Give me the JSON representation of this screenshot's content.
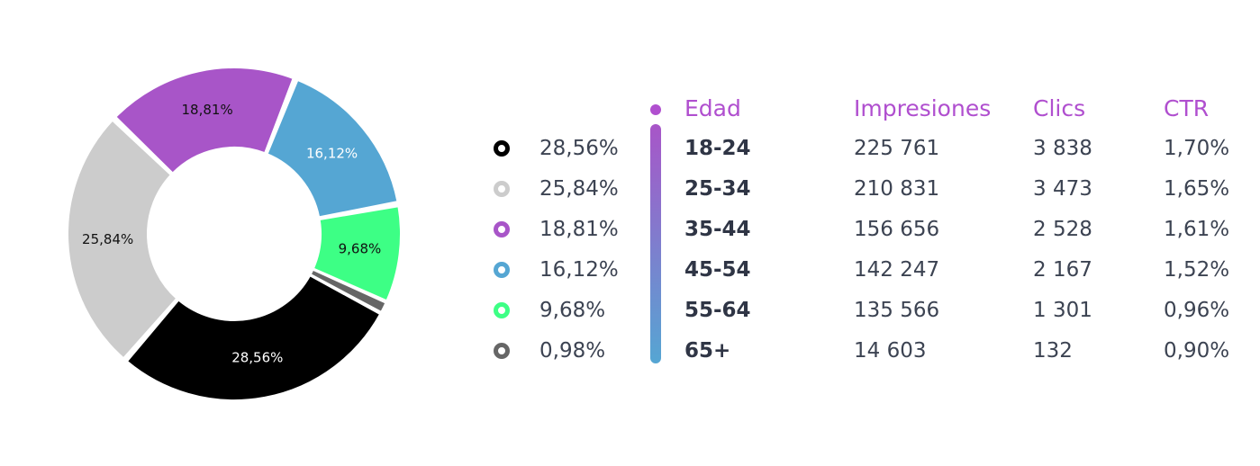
{
  "chart_data": [
    {
      "type": "pie",
      "variant": "donut",
      "slices": [
        {
          "label": "28,56%",
          "value": 28.56,
          "color": "#000000",
          "label_color": "#ffffff"
        },
        {
          "label": "25,84%",
          "value": 25.84,
          "color": "#cccccc",
          "label_color": "#111111"
        },
        {
          "label": "18,81%",
          "value": 18.81,
          "color": "#a855c8",
          "label_color": "#111111"
        },
        {
          "label": "16,12%",
          "value": 16.12,
          "color": "#55a6d3",
          "label_color": "#ffffff"
        },
        {
          "label": "9,68%",
          "value": 9.68,
          "color": "#3dff85",
          "label_color": "#111111"
        },
        {
          "label": "",
          "value": 0.98,
          "color": "#666666",
          "label_color": "#111111"
        }
      ]
    },
    {
      "type": "table",
      "columns": [
        "Edad",
        "Impresiones",
        "Clics",
        "CTR"
      ],
      "rows": [
        [
          "18-24",
          "225 761",
          "3 838",
          "1,70%"
        ],
        [
          "25-34",
          "210 831",
          "3 473",
          "1,65%"
        ],
        [
          "35-44",
          "156 656",
          "2 528",
          "1,61%"
        ],
        [
          "45-54",
          "142 247",
          "2 167",
          "1,52%"
        ],
        [
          "55-64",
          "135 566",
          "1 301",
          "0,96%"
        ],
        [
          "65+",
          "14 603",
          "132",
          "0,90%"
        ]
      ]
    }
  ],
  "legend": [
    {
      "value": "28,56%",
      "color": "#000000"
    },
    {
      "value": "25,84%",
      "color": "#cccccc"
    },
    {
      "value": "18,81%",
      "color": "#a855c8"
    },
    {
      "value": "16,12%",
      "color": "#55a6d3"
    },
    {
      "value": "9,68%",
      "color": "#3dff85"
    },
    {
      "value": "0,98%",
      "color": "#666666"
    }
  ],
  "colors": {
    "header": "#b04fcf",
    "age_gradient_top": "#a855c8",
    "age_gradient_bottom": "#55a6d3",
    "text": "#3c4352"
  }
}
